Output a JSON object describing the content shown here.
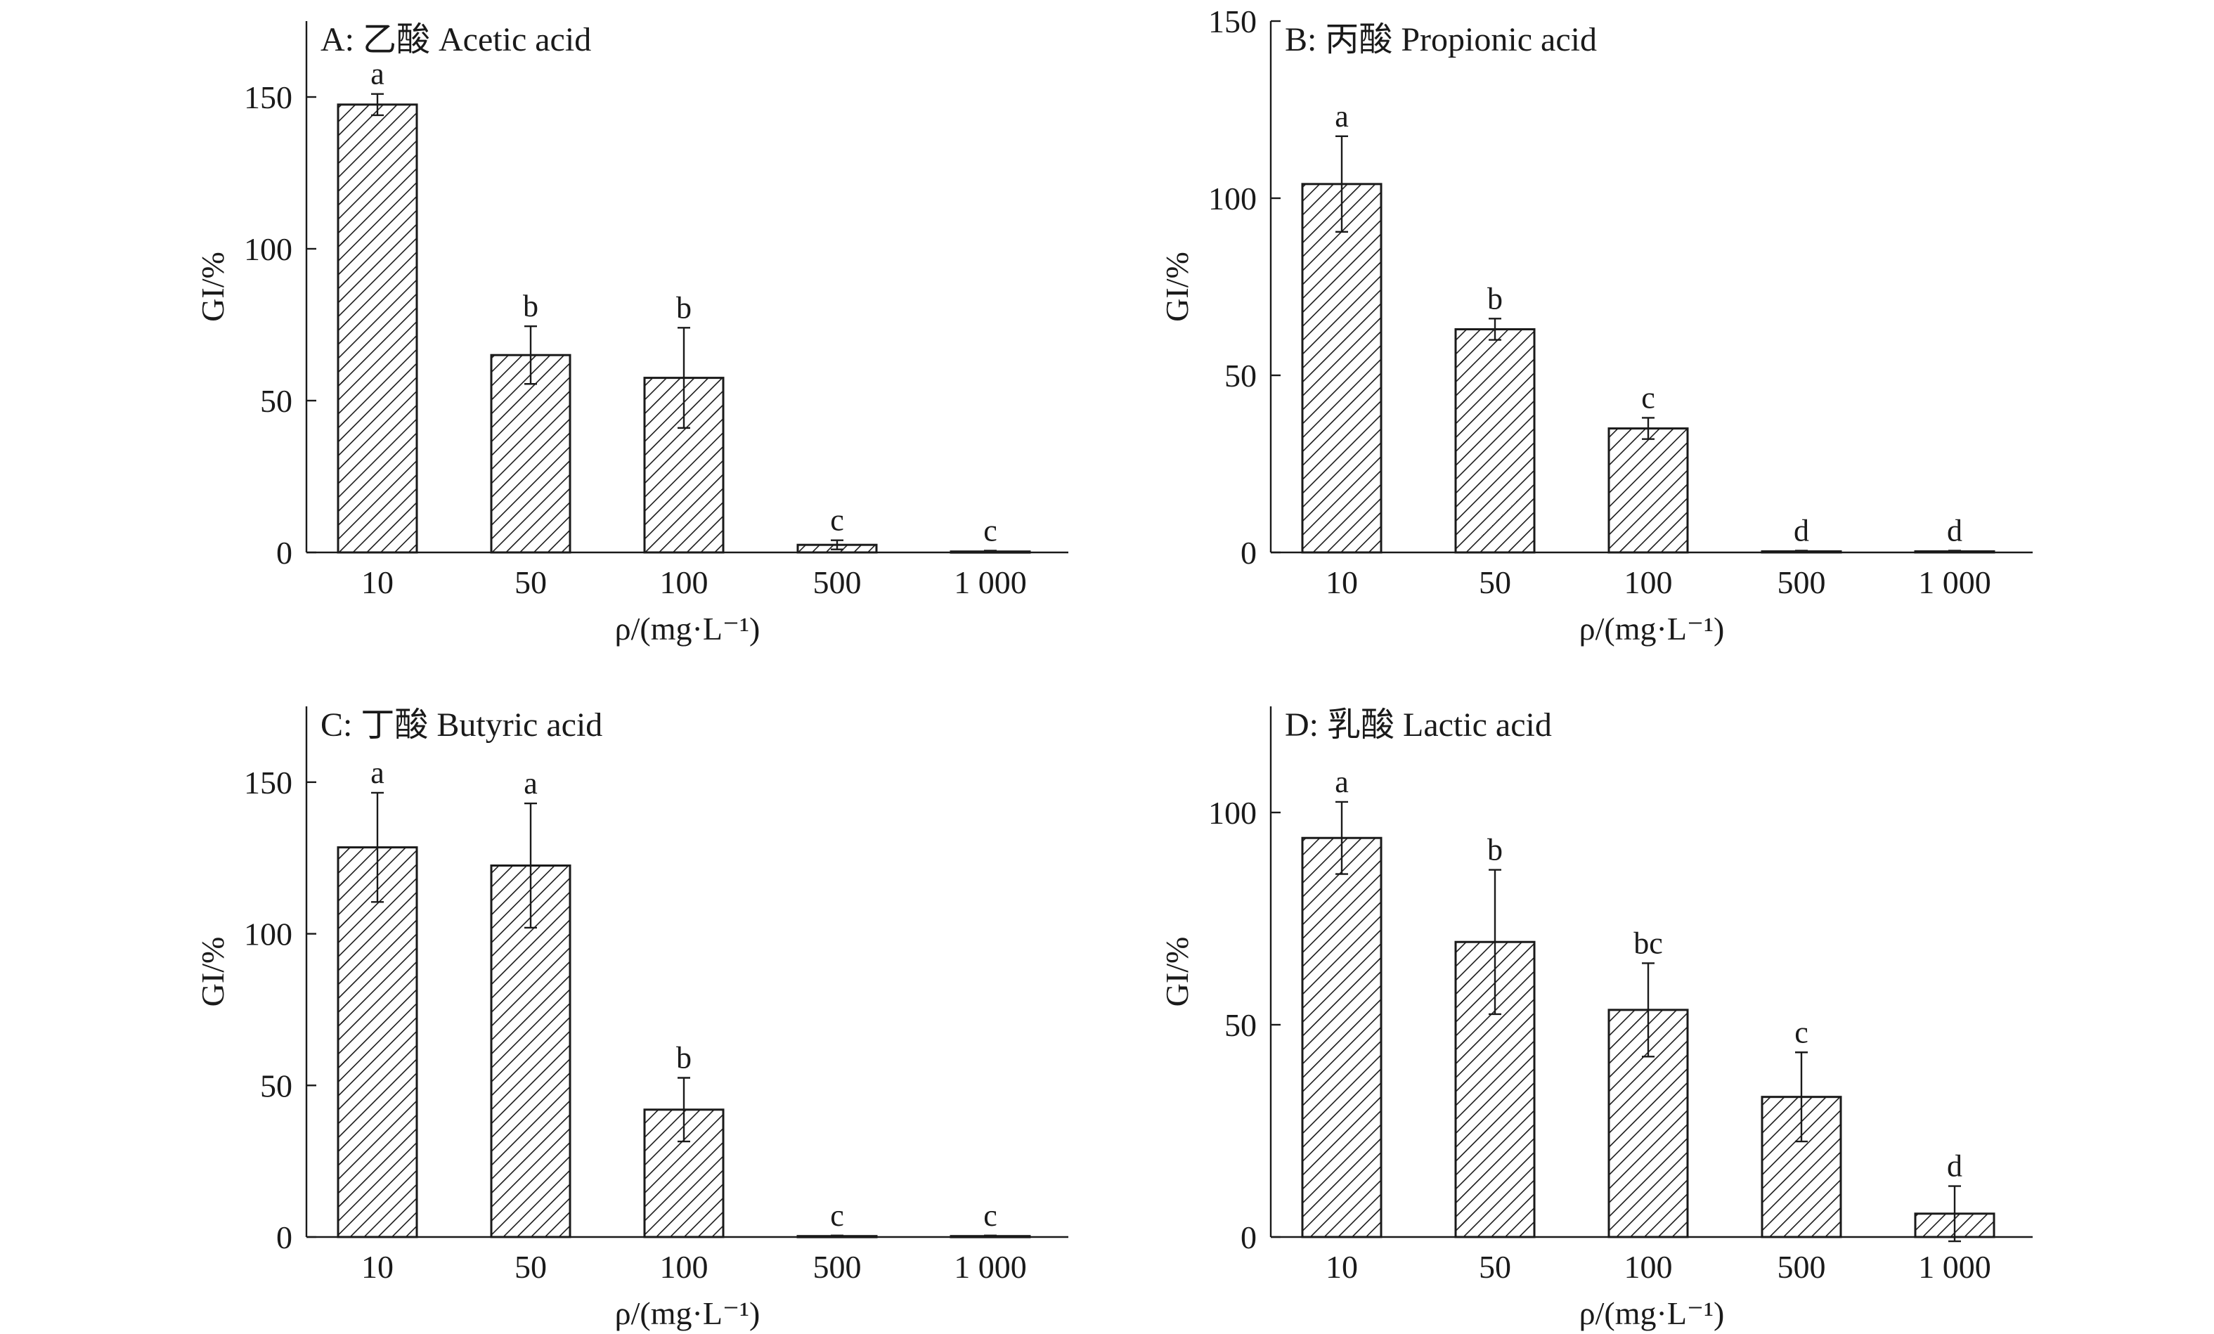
{
  "chart_data": [
    {
      "panel": "A",
      "type": "bar",
      "title": "A: 乙酸 Acetic acid",
      "xlabel": "ρ/(mg·L⁻¹)",
      "ylabel": "GI/%",
      "categories": [
        "10",
        "50",
        "100",
        "500",
        "1 000"
      ],
      "values": [
        147.5,
        65,
        57.5,
        2.5,
        0.3
      ],
      "errors": [
        3.5,
        9.5,
        16.5,
        1.5,
        0.3
      ],
      "labels": [
        "a",
        "b",
        "b",
        "c",
        "c"
      ],
      "ylim": [
        0,
        175
      ],
      "yticks": [
        0,
        50,
        100,
        150
      ]
    },
    {
      "panel": "B",
      "type": "bar",
      "title": "B: 丙酸 Propionic acid",
      "xlabel": "ρ/(mg·L⁻¹)",
      "ylabel": "GI/%",
      "categories": [
        "10",
        "50",
        "100",
        "500",
        "1 000"
      ],
      "values": [
        104,
        63,
        35,
        0.3,
        0.3
      ],
      "errors": [
        13.5,
        3,
        3,
        0.2,
        0.2
      ],
      "labels": [
        "a",
        "b",
        "c",
        "d",
        "d"
      ],
      "ylim": [
        0,
        150
      ],
      "yticks": [
        0,
        50,
        100,
        150
      ]
    },
    {
      "panel": "C",
      "type": "bar",
      "title": "C: 丁酸 Butyric acid",
      "xlabel": "ρ/(mg·L⁻¹)",
      "ylabel": "GI/%",
      "categories": [
        "10",
        "50",
        "100",
        "500",
        "1 000"
      ],
      "values": [
        128.5,
        122.5,
        42,
        0.3,
        0.3
      ],
      "errors": [
        18,
        20.5,
        10.5,
        0.2,
        0.2
      ],
      "labels": [
        "a",
        "a",
        "b",
        "c",
        "c"
      ],
      "ylim": [
        0,
        175
      ],
      "yticks": [
        0,
        50,
        100,
        150
      ]
    },
    {
      "panel": "D",
      "type": "bar",
      "title": "D: 乳酸 Lactic acid",
      "xlabel": "ρ/(mg·L⁻¹)",
      "ylabel": "GI/%",
      "categories": [
        "10",
        "50",
        "100",
        "500",
        "1 000"
      ],
      "values": [
        94,
        69.5,
        53.5,
        33,
        5.5
      ],
      "errors": [
        8.5,
        17,
        11,
        10.5,
        6.5
      ],
      "labels": [
        "a",
        "b",
        "bc",
        "c",
        "d"
      ],
      "ylim": [
        0,
        125
      ],
      "yticks": [
        0,
        50,
        100
      ]
    }
  ]
}
